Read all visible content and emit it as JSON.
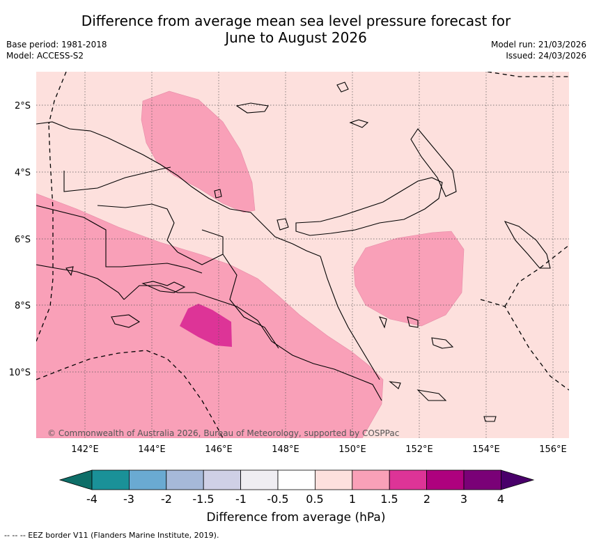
{
  "title_line1": "Difference from average mean sea level pressure forecast for",
  "title_line2": "June to August 2026",
  "base_period": "Base period: 1981-2018",
  "model": "Model: ACCESS-S2",
  "model_run": "Model run: 21/03/2026",
  "issued": "Issued: 24/03/2026",
  "copyright": "© Commonwealth of Australia 2026, Bureau of Meteorology, supported by COSPPac",
  "lat_labels": [
    "2°S",
    "4°S",
    "6°S",
    "8°S",
    "10°S"
  ],
  "lon_labels": [
    "142°E",
    "144°E",
    "146°E",
    "148°E",
    "150°E",
    "152°E",
    "154°E",
    "156°E"
  ],
  "colorbar": {
    "title": "Difference from average (hPa)",
    "tick_labels": [
      "-4",
      "-3",
      "-2",
      "-1.5",
      "-1",
      "-0.5",
      "0.5",
      "1",
      "1.5",
      "2",
      "3",
      "4"
    ],
    "colors": [
      "#0e6e68",
      "#1a9198",
      "#6aaad2",
      "#a6b9d9",
      "#cfd0e6",
      "#efedf2",
      "#ffffff",
      "#fde0dd",
      "#f9a0b8",
      "#dd3497",
      "#ae017e",
      "#7a0177",
      "#49006a"
    ]
  },
  "legend_note": "--  --  -- EEZ border V11 (Flanders Marine Institute, 2019)."
}
